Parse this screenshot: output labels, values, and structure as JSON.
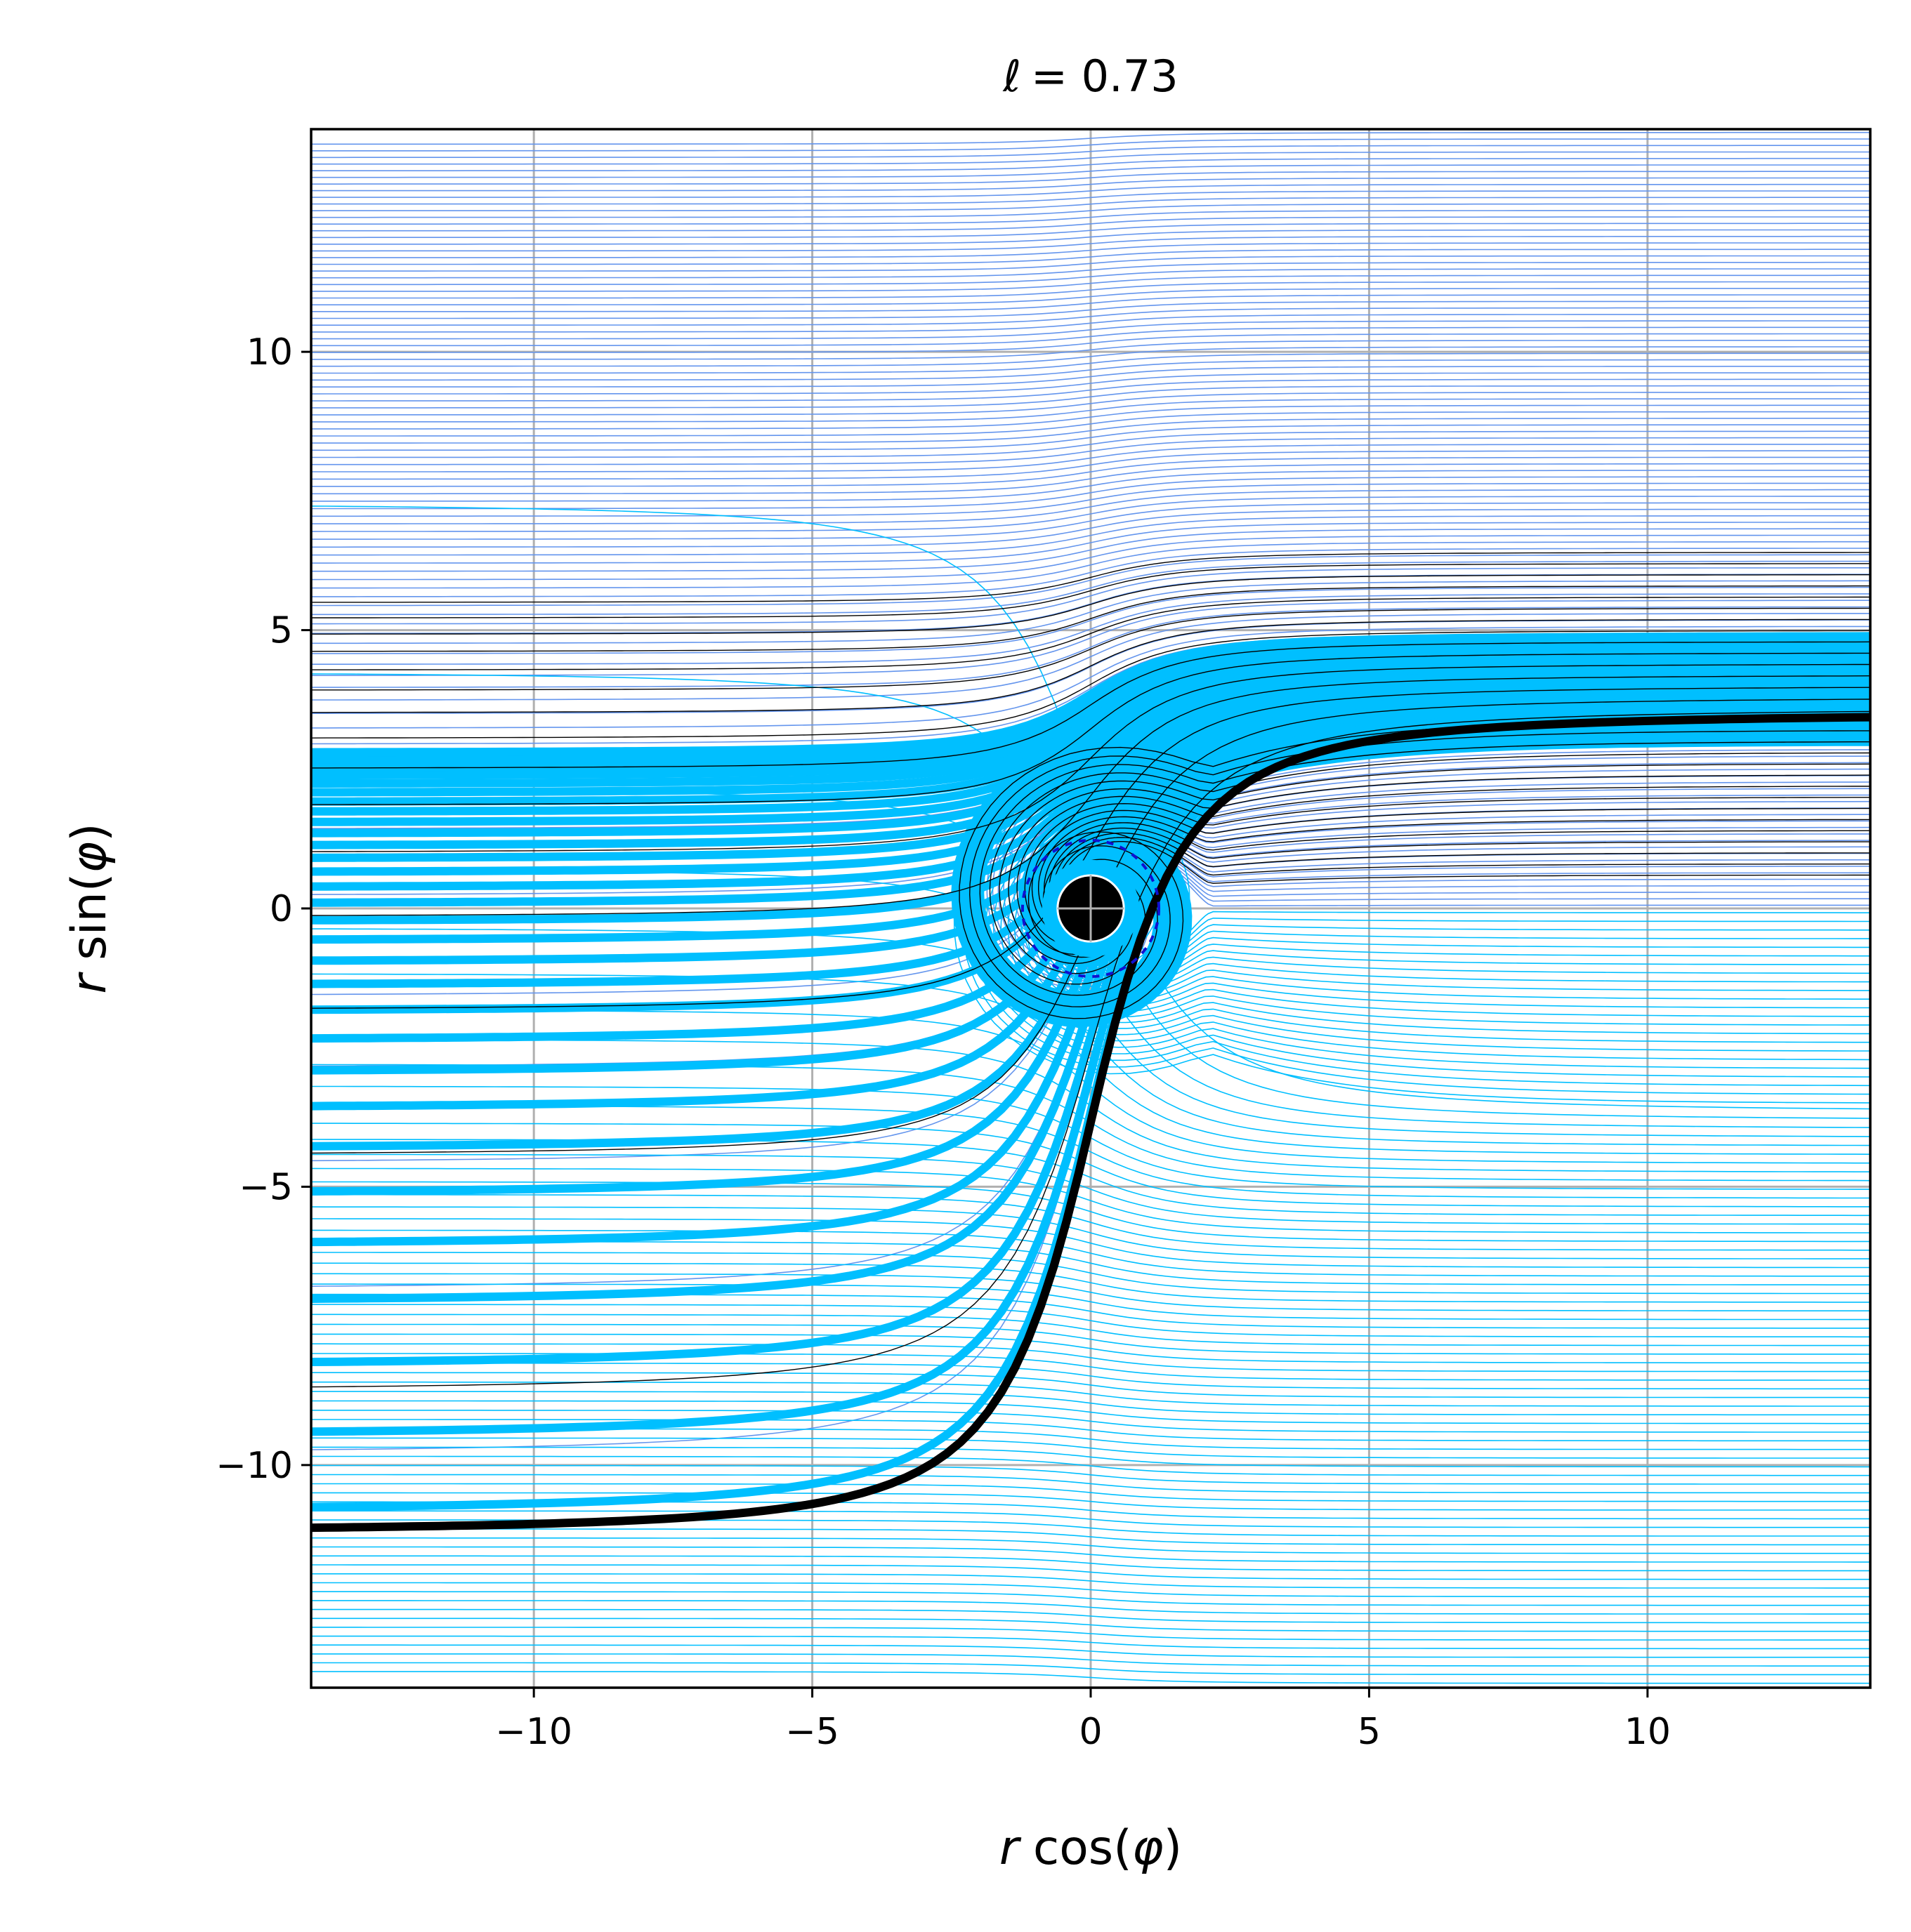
{
  "chart_data": {
    "type": "line",
    "title_prefix": "ℓ",
    "title_value": "= 0.73",
    "xlabel_var": "r",
    "xlabel_func": "cos(",
    "xlabel_arg": "φ",
    "xlabel_close": ")",
    "ylabel_var": "r",
    "ylabel_func": "sin(",
    "ylabel_arg": "φ",
    "ylabel_close": ")",
    "xlim": [
      -14,
      14
    ],
    "ylim": [
      -14,
      14
    ],
    "grid": true,
    "xticks": [
      -10,
      -5,
      0,
      5,
      10
    ],
    "xtick_labels": [
      "−10",
      "−5",
      "0",
      "5",
      "10"
    ],
    "yticks": [
      -10,
      -5,
      0,
      5,
      10
    ],
    "ytick_labels": [
      "−10",
      "−5",
      "0",
      "5",
      "10"
    ],
    "horizon_radius": 0.7,
    "photon_sphere_radius": 1.7,
    "critical_impact_parameter": 3.5,
    "ray_families": [
      {
        "role": "rays entering from right above axis",
        "color": "#6495ed",
        "impact_parameter_range": [
          0,
          14
        ],
        "count": 120
      },
      {
        "role": "rays entering from right below axis",
        "color": "#00bfff",
        "impact_parameter_range": [
          0,
          14
        ],
        "count": 90
      },
      {
        "role": "dense band near critical impact parameter",
        "color": "#00bfff",
        "impact_parameter_range": [
          3.0,
          4.9
        ]
      },
      {
        "role": "selected rays",
        "color": "#000000",
        "impact_parameter_range": [
          0.5,
          6.5
        ],
        "count": 30
      },
      {
        "role": "critical ray",
        "color": "#000000",
        "impact_parameter": 3.5
      }
    ],
    "colors": {
      "ray_above": "#6495ed",
      "ray_below": "#00bfff",
      "ray_black": "#000000",
      "photon_sphere": "#1010d0",
      "grid": "#b0b0b0"
    }
  }
}
